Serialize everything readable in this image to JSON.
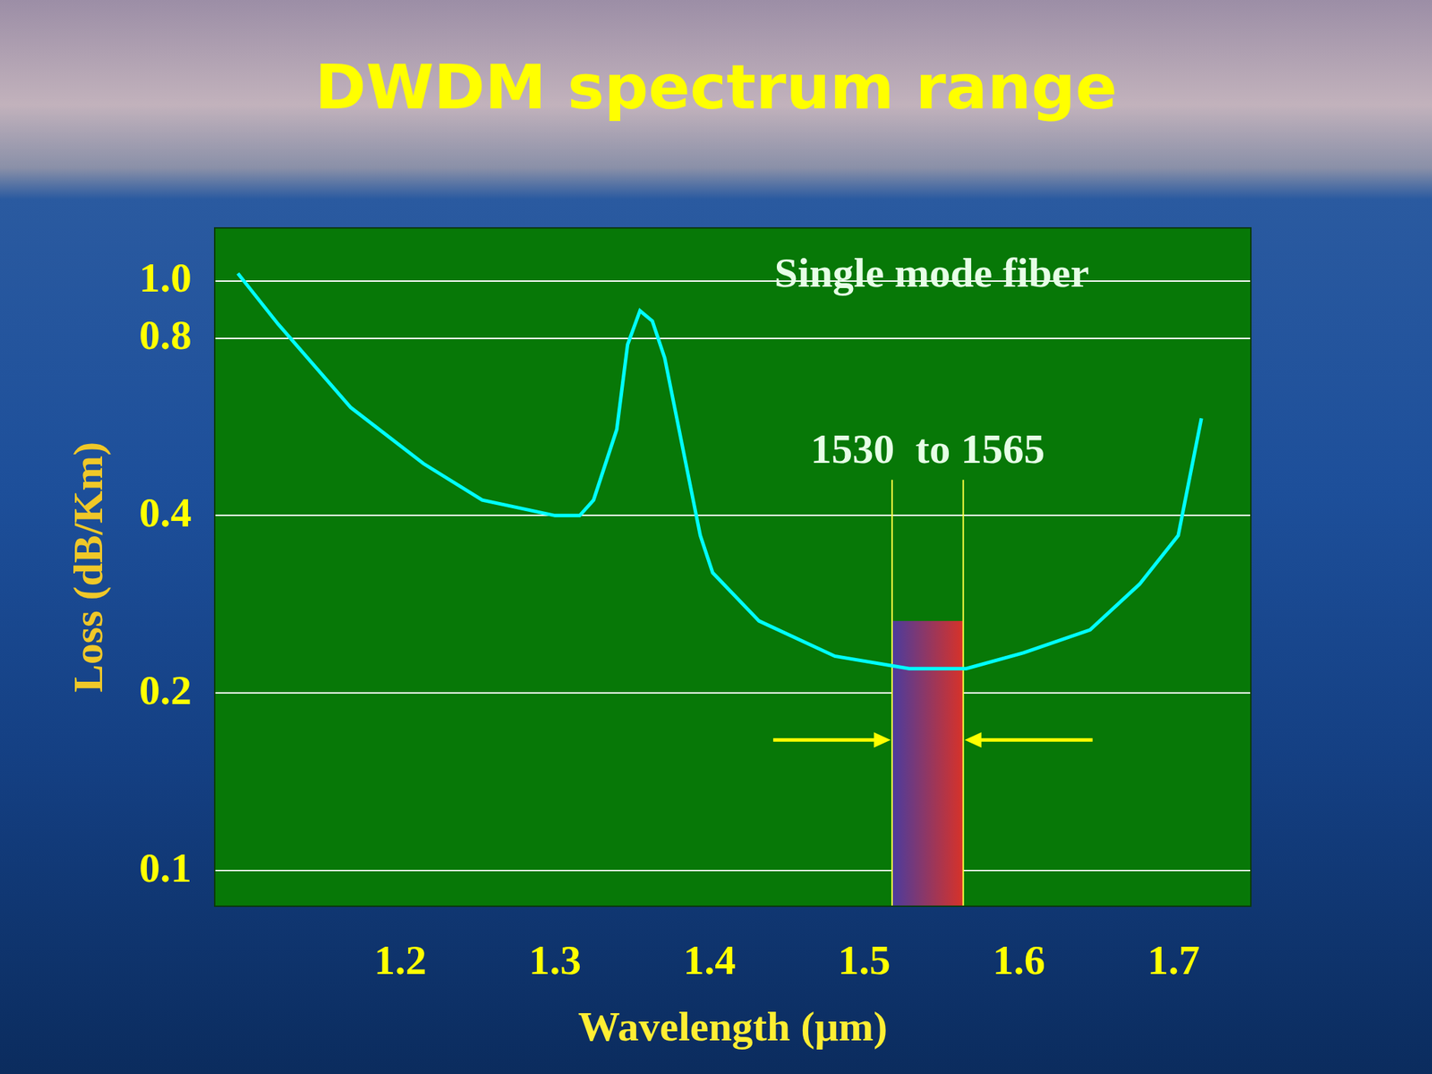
{
  "chart_data": {
    "type": "line",
    "title": "DWDM spectrum range",
    "x_label": "Wavelength (μm)",
    "y_label": "Loss (dB/Km)",
    "x": [
      1.095,
      1.121,
      1.168,
      1.215,
      1.253,
      1.3,
      1.316,
      1.325,
      1.34,
      1.347,
      1.355,
      1.363,
      1.371,
      1.394,
      1.402,
      1.432,
      1.481,
      1.529,
      1.566,
      1.603,
      1.646,
      1.678,
      1.703,
      1.718
    ],
    "values": [
      1.03,
      0.845,
      0.61,
      0.49,
      0.425,
      0.4,
      0.4,
      0.425,
      0.56,
      0.78,
      0.89,
      0.855,
      0.74,
      0.37,
      0.32,
      0.265,
      0.231,
      0.22,
      0.22,
      0.234,
      0.256,
      0.306,
      0.37,
      0.585
    ],
    "color": "#00ffff",
    "marker": "none",
    "xlim": [
      1.08,
      1.75
    ],
    "xticks": [
      1.2,
      1.3,
      1.4,
      1.5,
      1.6,
      1.7
    ],
    "ylim": [
      0.087,
      1.23
    ],
    "yticks": [
      0.1,
      0.2,
      0.4,
      0.8,
      {
        "value": 1,
        "label": "1.0"
      }
    ],
    "log": "y",
    "grid": "y",
    "annotations": [
      {
        "text": "Single mode fiber"
      }
    ],
    "band": {
      "label": "1530  to 1565",
      "x": [
        1.518,
        1.564
      ],
      "top": 0.265,
      "line_top": 0.46
    }
  }
}
